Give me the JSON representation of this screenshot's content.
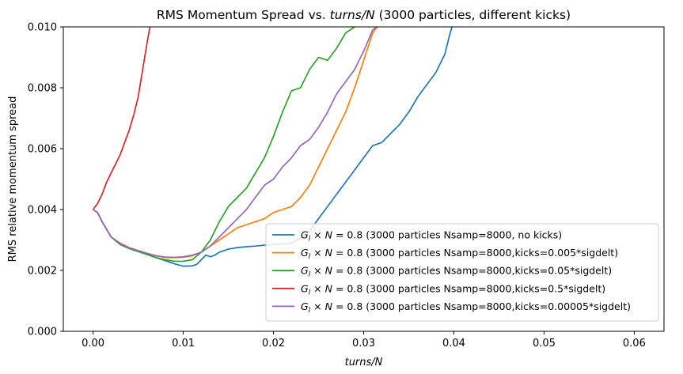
{
  "chart_data": {
    "type": "line",
    "title_prefix": "RMS Momentum Spread vs. ",
    "title_var": "turns/N",
    "title_suffix": " (3000 particles, different kicks)",
    "xlabel": "turns/N",
    "ylabel": "RMS relative momentum spread",
    "xlim": [
      -0.0033,
      0.0633
    ],
    "ylim": [
      0.0,
      0.01
    ],
    "xticks": [
      "0.00",
      "0.01",
      "0.02",
      "0.03",
      "0.04",
      "0.05",
      "0.06"
    ],
    "yticks": [
      "0.000",
      "0.002",
      "0.004",
      "0.006",
      "0.008",
      "0.010"
    ],
    "grid": false,
    "legend_position": "lower-right",
    "legend_formula": "G_l × N = 0.8",
    "series": [
      {
        "name": "(3000 particles Nsamp=8000, no kicks)",
        "color": "#1f77b4",
        "points": [
          [
            0.0,
            0.004
          ],
          [
            0.0005,
            0.0039
          ],
          [
            0.001,
            0.0036
          ],
          [
            0.002,
            0.0031
          ],
          [
            0.003,
            0.00285
          ],
          [
            0.004,
            0.00272
          ],
          [
            0.005,
            0.00262
          ],
          [
            0.006,
            0.00252
          ],
          [
            0.007,
            0.00242
          ],
          [
            0.008,
            0.00232
          ],
          [
            0.009,
            0.00222
          ],
          [
            0.01,
            0.00214
          ],
          [
            0.011,
            0.00215
          ],
          [
            0.0115,
            0.0022
          ],
          [
            0.012,
            0.00235
          ],
          [
            0.0125,
            0.0025
          ],
          [
            0.013,
            0.00245
          ],
          [
            0.0135,
            0.0025
          ],
          [
            0.014,
            0.0026
          ],
          [
            0.015,
            0.0027
          ],
          [
            0.016,
            0.00275
          ],
          [
            0.017,
            0.00278
          ],
          [
            0.018,
            0.0028
          ],
          [
            0.019,
            0.00283
          ],
          [
            0.02,
            0.00285
          ],
          [
            0.021,
            0.00287
          ],
          [
            0.022,
            0.0029
          ],
          [
            0.023,
            0.00305
          ],
          [
            0.024,
            0.0033
          ],
          [
            0.025,
            0.0037
          ],
          [
            0.026,
            0.0041
          ],
          [
            0.027,
            0.0045
          ],
          [
            0.028,
            0.0049
          ],
          [
            0.029,
            0.0053
          ],
          [
            0.03,
            0.0057
          ],
          [
            0.031,
            0.0061
          ],
          [
            0.032,
            0.0062
          ],
          [
            0.033,
            0.0065
          ],
          [
            0.034,
            0.0068
          ],
          [
            0.035,
            0.0072
          ],
          [
            0.036,
            0.0077
          ],
          [
            0.037,
            0.0081
          ],
          [
            0.038,
            0.0085
          ],
          [
            0.039,
            0.0091
          ],
          [
            0.0395,
            0.0097
          ],
          [
            0.0398,
            0.01
          ]
        ]
      },
      {
        "name": "(3000 particles Nsamp=8000,kicks=0.005*sigdelt)",
        "color": "#ff7f0e",
        "points": [
          [
            0.0,
            0.004
          ],
          [
            0.0005,
            0.0039
          ],
          [
            0.001,
            0.0036
          ],
          [
            0.002,
            0.0031
          ],
          [
            0.003,
            0.0029
          ],
          [
            0.004,
            0.00275
          ],
          [
            0.005,
            0.00265
          ],
          [
            0.006,
            0.00256
          ],
          [
            0.007,
            0.00248
          ],
          [
            0.008,
            0.00242
          ],
          [
            0.009,
            0.00242
          ],
          [
            0.01,
            0.00243
          ],
          [
            0.011,
            0.00248
          ],
          [
            0.012,
            0.0026
          ],
          [
            0.013,
            0.0028
          ],
          [
            0.014,
            0.003
          ],
          [
            0.015,
            0.0032
          ],
          [
            0.016,
            0.0034
          ],
          [
            0.017,
            0.0035
          ],
          [
            0.018,
            0.0036
          ],
          [
            0.019,
            0.0037
          ],
          [
            0.02,
            0.0039
          ],
          [
            0.021,
            0.004
          ],
          [
            0.022,
            0.0041
          ],
          [
            0.023,
            0.0044
          ],
          [
            0.024,
            0.0048
          ],
          [
            0.025,
            0.0054
          ],
          [
            0.026,
            0.006
          ],
          [
            0.027,
            0.0066
          ],
          [
            0.028,
            0.0072
          ],
          [
            0.029,
            0.008
          ],
          [
            0.03,
            0.0089
          ],
          [
            0.031,
            0.0098
          ],
          [
            0.0315,
            0.01
          ]
        ]
      },
      {
        "name": "(3000 particles Nsamp=8000,kicks=0.05*sigdelt)",
        "color": "#2ca02c",
        "points": [
          [
            0.0,
            0.004
          ],
          [
            0.0005,
            0.0039
          ],
          [
            0.001,
            0.0036
          ],
          [
            0.002,
            0.0031
          ],
          [
            0.003,
            0.00285
          ],
          [
            0.004,
            0.00272
          ],
          [
            0.005,
            0.00262
          ],
          [
            0.006,
            0.00252
          ],
          [
            0.007,
            0.00242
          ],
          [
            0.008,
            0.00235
          ],
          [
            0.009,
            0.0023
          ],
          [
            0.01,
            0.0023
          ],
          [
            0.011,
            0.00235
          ],
          [
            0.012,
            0.0026
          ],
          [
            0.013,
            0.003
          ],
          [
            0.014,
            0.0036
          ],
          [
            0.015,
            0.0041
          ],
          [
            0.016,
            0.0044
          ],
          [
            0.017,
            0.0047
          ],
          [
            0.018,
            0.0052
          ],
          [
            0.019,
            0.0057
          ],
          [
            0.02,
            0.0064
          ],
          [
            0.021,
            0.0072
          ],
          [
            0.022,
            0.0079
          ],
          [
            0.023,
            0.008
          ],
          [
            0.024,
            0.0086
          ],
          [
            0.025,
            0.009
          ],
          [
            0.026,
            0.0089
          ],
          [
            0.027,
            0.0093
          ],
          [
            0.028,
            0.0098
          ],
          [
            0.029,
            0.01
          ]
        ]
      },
      {
        "name": "(3000 particles Nsamp=8000,kicks=0.5*sigdelt)",
        "color": "#d62728",
        "points": [
          [
            0.0,
            0.004
          ],
          [
            0.0005,
            0.0042
          ],
          [
            0.001,
            0.0045
          ],
          [
            0.0015,
            0.0049
          ],
          [
            0.002,
            0.0052
          ],
          [
            0.0025,
            0.0055
          ],
          [
            0.003,
            0.0058
          ],
          [
            0.0035,
            0.0062
          ],
          [
            0.004,
            0.0066
          ],
          [
            0.0045,
            0.0071
          ],
          [
            0.005,
            0.0077
          ],
          [
            0.0055,
            0.0086
          ],
          [
            0.006,
            0.0095
          ],
          [
            0.0063,
            0.01
          ]
        ]
      },
      {
        "name": "(3000 particles Nsamp=8000,kicks=0.00005*sigdelt)",
        "color": "#9467bd",
        "points": [
          [
            0.0,
            0.004
          ],
          [
            0.0005,
            0.0039
          ],
          [
            0.001,
            0.0036
          ],
          [
            0.002,
            0.0031
          ],
          [
            0.003,
            0.00288
          ],
          [
            0.004,
            0.00274
          ],
          [
            0.005,
            0.00265
          ],
          [
            0.006,
            0.00256
          ],
          [
            0.007,
            0.00248
          ],
          [
            0.008,
            0.00244
          ],
          [
            0.009,
            0.00243
          ],
          [
            0.01,
            0.00245
          ],
          [
            0.011,
            0.0025
          ],
          [
            0.012,
            0.0026
          ],
          [
            0.013,
            0.0028
          ],
          [
            0.014,
            0.0031
          ],
          [
            0.015,
            0.0034
          ],
          [
            0.016,
            0.0037
          ],
          [
            0.017,
            0.004
          ],
          [
            0.018,
            0.0044
          ],
          [
            0.019,
            0.0048
          ],
          [
            0.02,
            0.005
          ],
          [
            0.021,
            0.0054
          ],
          [
            0.022,
            0.0057
          ],
          [
            0.023,
            0.0061
          ],
          [
            0.024,
            0.0063
          ],
          [
            0.025,
            0.0067
          ],
          [
            0.026,
            0.0072
          ],
          [
            0.027,
            0.0078
          ],
          [
            0.028,
            0.0082
          ],
          [
            0.029,
            0.0086
          ],
          [
            0.03,
            0.0092
          ],
          [
            0.031,
            0.0099
          ],
          [
            0.0315,
            0.01
          ]
        ]
      }
    ]
  }
}
